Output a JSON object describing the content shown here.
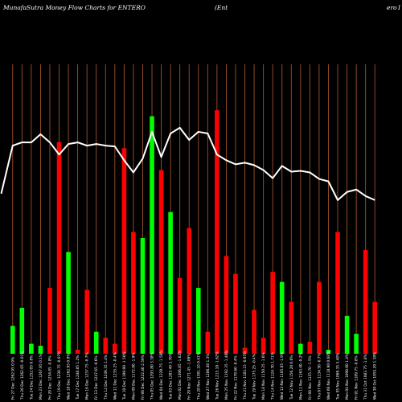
{
  "chart_data": {
    "type": "bar",
    "title_parts": [
      "MunafaSutra  Money Flow  Charts for ENTERO",
      "(Ent",
      "ero",
      "I"
    ],
    "colors": {
      "background": "#000000",
      "up": "#00ff00",
      "down": "#ff0000",
      "price_line": "#ffffff",
      "grid": "#a0522d"
    },
    "grid": true,
    "categories": [
      "Fri 27 Dec 1262.95 0.9%",
      "Thu 26 Dec 1262.65 -0.01%",
      "Tue 24 Dec 1252.05 0.8%",
      "Mon 23 Dec 1267.65 0.1%",
      "Fri 20 Dec 1254.85 -0.8%",
      "Thu 19 Dec 1230.75 -0.07%",
      "Wed 18 Dec 1262.95 0.9%",
      "Tue 17 Dec 1248.85 1.2%",
      "Mon 16 Dec 1257.75 -0.7%",
      "Fri 13 Dec 1247.65 -0.6%",
      "Thu 12 Dec 1249.35 1.4%",
      "Wed 11 Dec 1235.25 -0.4%",
      "Tue 10 Dec 1199.00 -1.56%",
      "Mon 09 Dec 1172.00 -1.9%",
      "Fri 06 Dec 1222.40 2.59%",
      "Thu 05 Dec 1293.80 3.38%",
      "Wed 04 Dec 1229.75 -1.58%",
      "Tue 03 Dec 1283.40 3.76%",
      "Mon 02 Dec 1306.85 -1.62%",
      "Fri 29 Nov 1271.45 -1.09%",
      "Thu 28 Nov 1301.10 0.41%",
      "Wed 27 Nov 1286.40 1.3%",
      "Tue 26 Nov 1215.10 -1.62%",
      "Mon 25 Nov 1192.35 -1.48%",
      "Fri 22 Nov 1178.60 -0.4%",
      "Thu 21 Nov 1183.15 -0.95%",
      "Tue 19 Nov 1175.25 -0.4%",
      "Mon 18 Nov 1150.25 -1.6%",
      "Thu 14 Nov 1124.70 1.71%",
      "Wed 13 Nov 1185.05 -1.9%",
      "Tue 12 Nov 1156.20 0.8%",
      "Mon 11 Nov 1163.40 -0.2%",
      "Fri 08 Nov 1155.70 -1.5%",
      "Thu 07 Nov 1134.50 -0.7%",
      "Wed 06 Nov 1118.90 0.68%",
      "Tue 05 Nov 1069.35 3.48%",
      "Mon 04 Nov 1098.60 1.4%",
      "Fri 01 Nov 1109.75 -0.8%",
      "Thu 31 Oct 1083.75 -1.8%",
      "Wed 30 Oct 1055.20 1.38%"
    ],
    "bars": [
      {
        "value": 14,
        "dir": "up"
      },
      {
        "value": 23,
        "dir": "up"
      },
      {
        "value": 5,
        "dir": "up"
      },
      {
        "value": 4,
        "dir": "up"
      },
      {
        "value": 33,
        "dir": "down"
      },
      {
        "value": 106,
        "dir": "down"
      },
      {
        "value": 51,
        "dir": "up"
      },
      {
        "value": 2,
        "dir": "down"
      },
      {
        "value": 32,
        "dir": "down"
      },
      {
        "value": 11,
        "dir": "up"
      },
      {
        "value": 8,
        "dir": "down"
      },
      {
        "value": 5,
        "dir": "down"
      },
      {
        "value": 103,
        "dir": "down"
      },
      {
        "value": 61,
        "dir": "down"
      },
      {
        "value": 58,
        "dir": "up"
      },
      {
        "value": 119,
        "dir": "up"
      },
      {
        "value": 92,
        "dir": "down"
      },
      {
        "value": 71,
        "dir": "up"
      },
      {
        "value": 38,
        "dir": "down"
      },
      {
        "value": 63,
        "dir": "down"
      },
      {
        "value": 33,
        "dir": "up"
      },
      {
        "value": 11,
        "dir": "down"
      },
      {
        "value": 122,
        "dir": "down"
      },
      {
        "value": 49,
        "dir": "down"
      },
      {
        "value": 40,
        "dir": "down"
      },
      {
        "value": 3,
        "dir": "down"
      },
      {
        "value": 22,
        "dir": "down"
      },
      {
        "value": 8,
        "dir": "down"
      },
      {
        "value": 41,
        "dir": "down"
      },
      {
        "value": 36,
        "dir": "up"
      },
      {
        "value": 26,
        "dir": "down"
      },
      {
        "value": 5,
        "dir": "up"
      },
      {
        "value": 6,
        "dir": "down"
      },
      {
        "value": 36,
        "dir": "down"
      },
      {
        "value": 2,
        "dir": "up"
      },
      {
        "value": 61,
        "dir": "down"
      },
      {
        "value": 19,
        "dir": "up"
      },
      {
        "value": 10,
        "dir": "up"
      },
      {
        "value": 52,
        "dir": "down"
      },
      {
        "value": 26,
        "dir": "down"
      }
    ],
    "bar_ylim": [
      0,
      145
    ],
    "price": [
      1262.95,
      1322,
      1326,
      1326,
      1336,
      1326,
      1311,
      1324,
      1326,
      1322,
      1324,
      1322,
      1321,
      1304,
      1289,
      1306,
      1339,
      1308,
      1337,
      1344,
      1329,
      1339,
      1337,
      1311,
      1304,
      1299,
      1301,
      1298,
      1292,
      1282,
      1297,
      1290,
      1291,
      1289,
      1281,
      1278,
      1255,
      1265,
      1268,
      1260,
      1255
    ],
    "price_ylim": [
      1066,
      1422
    ]
  }
}
